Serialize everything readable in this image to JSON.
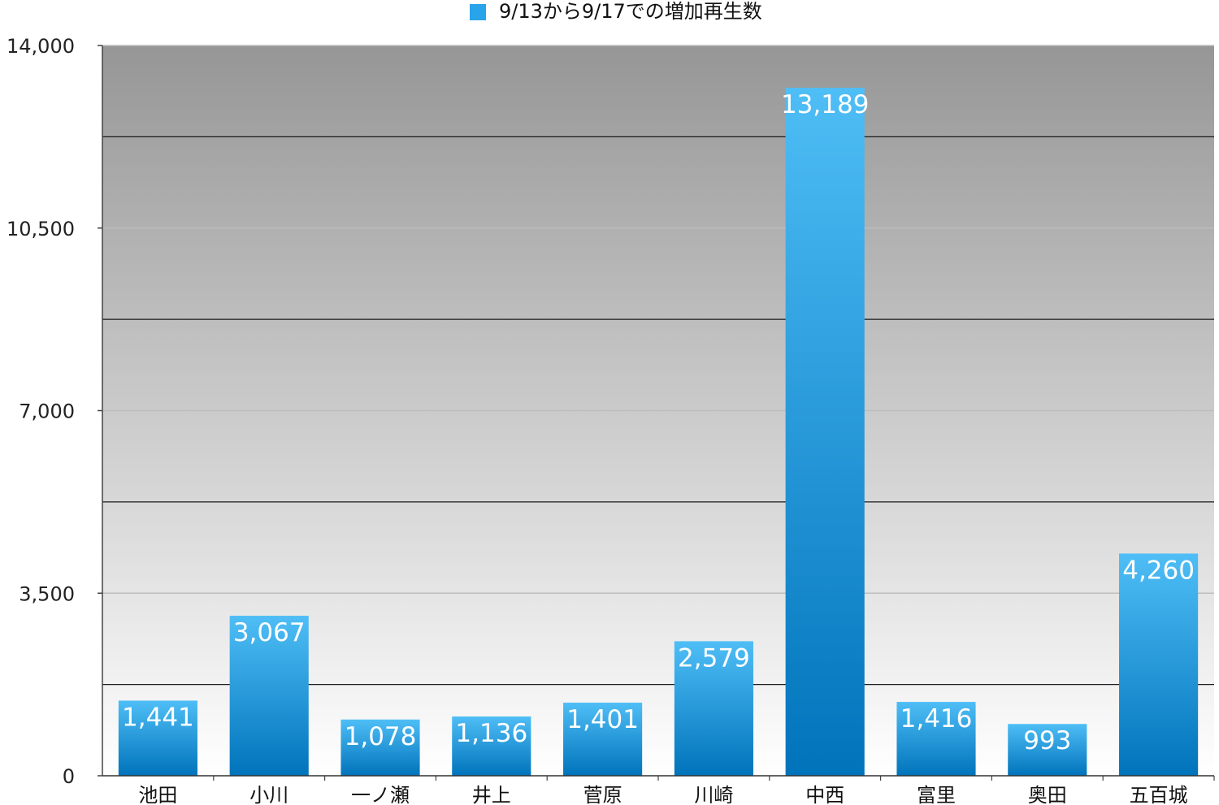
{
  "chart_data": {
    "type": "bar",
    "categories": [
      "池田",
      "小川",
      "一ノ瀬",
      "井上",
      "菅原",
      "川崎",
      "中西",
      "富里",
      "奥田",
      "五百城"
    ],
    "series": [
      {
        "name": "9/13から9/17での増加再生数",
        "values": [
          1441,
          3067,
          1078,
          1136,
          1401,
          2579,
          13189,
          1416,
          993,
          4260
        ]
      }
    ],
    "data_labels": [
      "1,441",
      "3,067",
      "1,078",
      "1,136",
      "1,401",
      "2,579",
      "13,189",
      "1,416",
      "993",
      "4,260"
    ],
    "ylim": [
      0,
      14000
    ],
    "y_ticks": [
      0,
      3500,
      7000,
      10500,
      14000
    ],
    "y_tick_labels": [
      "0",
      "3,500",
      "7,000",
      "10,500",
      "14,000"
    ],
    "grid": true,
    "legend_position": "top-center",
    "colors": {
      "bar_top": "#4fbef6",
      "bar_bottom": "#0073bb",
      "plot_top": "#969696",
      "plot_bottom": "#ffffff",
      "legend_marker": "#29a3ea"
    }
  }
}
